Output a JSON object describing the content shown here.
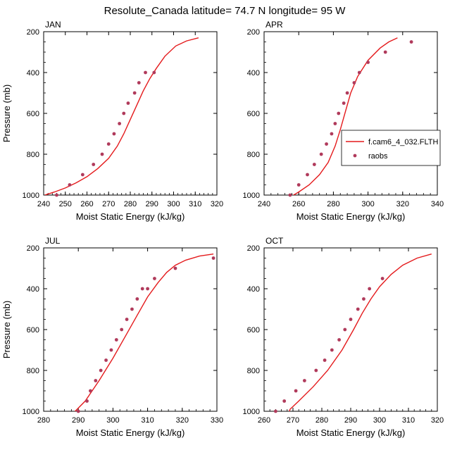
{
  "figure_title": "Resolute_Canada  latitude= 74.7 N longitude= 95 W",
  "legend": {
    "model_label": "f.cam6_4_032.FLTH",
    "obs_label": "raobs"
  },
  "colors": {
    "model": "#e41a1c",
    "obs": "#b03a5b",
    "axes": "#000000"
  },
  "chart_data": [
    {
      "type": "line",
      "title": "JAN",
      "xlabel": "Moist Static Energy (kJ/kg)",
      "ylabel": "Pressure (mb)",
      "xlim": [
        240,
        320
      ],
      "ylim": [
        1000,
        200
      ],
      "xticks": [
        240,
        250,
        260,
        270,
        280,
        290,
        300,
        310,
        320
      ],
      "yticks": [
        200,
        400,
        600,
        800,
        1000
      ],
      "series": [
        {
          "kind": "line",
          "x": [
            240.5,
            245,
            250,
            255,
            260,
            265,
            270,
            274,
            277,
            280,
            283,
            286,
            289,
            292,
            296,
            301,
            306,
            311.5
          ],
          "y": [
            1000,
            985,
            965,
            940,
            910,
            870,
            820,
            760,
            700,
            630,
            560,
            490,
            430,
            380,
            320,
            270,
            245,
            230
          ]
        },
        {
          "kind": "points",
          "x": [
            246,
            252,
            258,
            263,
            267,
            270,
            272.5,
            275,
            277,
            279,
            282,
            284,
            287,
            291
          ],
          "y": [
            1000,
            950,
            900,
            850,
            800,
            750,
            700,
            650,
            600,
            550,
            500,
            450,
            400,
            400
          ]
        }
      ]
    },
    {
      "type": "line",
      "title": "APR",
      "xlabel": "Moist Static Energy (kJ/kg)",
      "ylabel": "",
      "xlim": [
        240,
        340
      ],
      "ylim": [
        1000,
        200
      ],
      "xticks": [
        240,
        260,
        280,
        300,
        320,
        340
      ],
      "yticks": [
        200,
        400,
        600,
        800,
        1000
      ],
      "legend_position": "middle-right",
      "series": [
        {
          "kind": "line",
          "x": [
            255,
            260,
            266,
            272,
            277,
            281,
            284,
            287,
            290,
            294,
            300,
            307,
            312,
            317
          ],
          "y": [
            1010,
            985,
            950,
            900,
            840,
            760,
            680,
            590,
            500,
            420,
            340,
            280,
            250,
            230
          ]
        },
        {
          "kind": "points",
          "x": [
            255,
            260,
            265,
            269,
            273,
            276,
            279,
            281,
            283,
            286,
            288,
            292,
            295,
            300,
            310,
            325
          ],
          "y": [
            1000,
            950,
            900,
            850,
            800,
            750,
            700,
            650,
            600,
            550,
            500,
            450,
            400,
            350,
            300,
            250
          ]
        }
      ]
    },
    {
      "type": "line",
      "title": "JUL",
      "xlabel": "Moist Static Energy (kJ/kg)",
      "ylabel": "Pressure (mb)",
      "xlim": [
        280,
        330
      ],
      "ylim": [
        1000,
        200
      ],
      "xticks": [
        280,
        290,
        300,
        310,
        320,
        330
      ],
      "yticks": [
        200,
        400,
        600,
        800,
        1000
      ],
      "series": [
        {
          "kind": "line",
          "x": [
            288.5,
            292,
            296,
            300,
            304,
            307,
            310,
            313,
            315.5,
            318,
            321,
            325,
            329
          ],
          "y": [
            1010,
            950,
            850,
            740,
            620,
            530,
            440,
            370,
            320,
            285,
            260,
            240,
            230
          ]
        },
        {
          "kind": "points",
          "x": [
            290,
            292.5,
            293.5,
            295,
            296.5,
            298,
            299.5,
            301,
            302.5,
            304,
            305.5,
            307,
            308.5,
            310,
            312,
            318,
            329
          ],
          "y": [
            1000,
            950,
            900,
            850,
            800,
            750,
            700,
            650,
            600,
            550,
            500,
            450,
            400,
            400,
            350,
            300,
            250
          ]
        }
      ]
    },
    {
      "type": "line",
      "title": "OCT",
      "xlabel": "Moist Static Energy (kJ/kg)",
      "ylabel": "",
      "xlim": [
        260,
        320
      ],
      "ylim": [
        1000,
        200
      ],
      "xticks": [
        260,
        270,
        280,
        290,
        300,
        310,
        320
      ],
      "yticks": [
        200,
        400,
        600,
        800,
        1000
      ],
      "series": [
        {
          "kind": "line",
          "x": [
            268.5,
            269,
            272,
            277,
            282,
            287,
            291,
            294,
            297,
            300,
            304,
            308,
            313,
            318
          ],
          "y": [
            1010,
            990,
            950,
            880,
            800,
            700,
            600,
            520,
            450,
            390,
            330,
            285,
            250,
            230
          ]
        },
        {
          "kind": "points",
          "x": [
            264,
            267,
            271,
            274,
            278,
            281,
            283.5,
            286,
            288,
            290,
            292.5,
            294.5,
            296.5,
            301
          ],
          "y": [
            1000,
            950,
            900,
            850,
            800,
            750,
            700,
            650,
            600,
            550,
            500,
            450,
            400,
            350
          ]
        }
      ]
    }
  ]
}
